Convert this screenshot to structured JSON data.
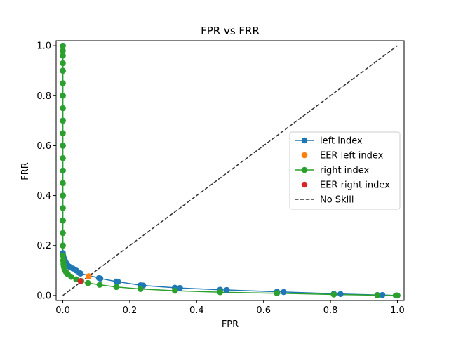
{
  "chart_data": {
    "type": "line",
    "title": "FPR vs FRR",
    "xlabel": "FPR",
    "ylabel": "FRR",
    "xlim": [
      -0.02,
      1.02
    ],
    "ylim": [
      -0.02,
      1.02
    ],
    "xticks": [
      0.0,
      0.2,
      0.4,
      0.6,
      0.8,
      1.0
    ],
    "yticks": [
      0.0,
      0.2,
      0.4,
      0.6,
      0.8,
      1.0
    ],
    "tick_labels_x": [
      "0.0",
      "0.2",
      "0.4",
      "0.6",
      "0.8",
      "1.0"
    ],
    "tick_labels_y": [
      "0.0",
      "0.2",
      "0.4",
      "0.6",
      "0.8",
      "1.0"
    ],
    "grid": false,
    "legend_position": "center-right",
    "series": [
      {
        "name": "left index",
        "kind": "line-marker",
        "color": "#1f77b4",
        "x": [
          1.0,
          0.997,
          0.955,
          0.94,
          0.83,
          0.81,
          0.66,
          0.64,
          0.49,
          0.47,
          0.35,
          0.335,
          0.24,
          0.232,
          0.165,
          0.16,
          0.112,
          0.108,
          0.053,
          0.05,
          0.04,
          0.03,
          0.02,
          0.014,
          0.01,
          0.006,
          0.003,
          0.001,
          0.0,
          0.0,
          0.0,
          0.0,
          0.0,
          0.0,
          0.0,
          0.0,
          0.0,
          0.0
        ],
        "y": [
          0.0,
          0.0,
          0.002,
          0.002,
          0.006,
          0.007,
          0.014,
          0.015,
          0.022,
          0.023,
          0.03,
          0.031,
          0.04,
          0.041,
          0.055,
          0.056,
          0.068,
          0.07,
          0.088,
          0.09,
          0.1,
          0.108,
          0.115,
          0.122,
          0.13,
          0.14,
          0.15,
          0.16,
          0.17,
          0.2,
          0.3,
          0.4,
          0.5,
          0.6,
          0.7,
          0.8,
          0.9,
          1.0
        ]
      },
      {
        "name": "EER left index",
        "kind": "marker",
        "color": "#ff7f0e",
        "x": [
          0.077
        ],
        "y": [
          0.077
        ]
      },
      {
        "name": "right index",
        "kind": "line-marker",
        "color": "#2ca02c",
        "x": [
          1.0,
          0.995,
          0.94,
          0.81,
          0.64,
          0.47,
          0.335,
          0.232,
          0.16,
          0.11,
          0.075,
          0.055,
          0.04,
          0.025,
          0.015,
          0.009,
          0.005,
          0.003,
          0.002,
          0.001,
          0.0,
          0.0,
          0.0,
          0.0,
          0.0,
          0.0,
          0.0,
          0.0,
          0.0,
          0.0,
          0.0,
          0.0,
          0.0,
          0.0,
          0.0,
          0.0,
          0.0,
          0.0,
          0.0,
          0.0
        ],
        "y": [
          0.0,
          0.0,
          0.001,
          0.004,
          0.009,
          0.013,
          0.019,
          0.026,
          0.034,
          0.043,
          0.05,
          0.058,
          0.065,
          0.075,
          0.085,
          0.095,
          0.105,
          0.115,
          0.125,
          0.14,
          0.16,
          0.2,
          0.25,
          0.3,
          0.35,
          0.4,
          0.45,
          0.5,
          0.55,
          0.6,
          0.65,
          0.7,
          0.75,
          0.8,
          0.85,
          0.9,
          0.93,
          0.96,
          0.98,
          1.0
        ]
      },
      {
        "name": "EER right index",
        "kind": "marker",
        "color": "#d62728",
        "x": [
          0.053
        ],
        "y": [
          0.058
        ]
      },
      {
        "name": "No Skill",
        "kind": "dashed-line",
        "color": "#333333",
        "x": [
          0.0,
          1.0
        ],
        "y": [
          0.0,
          1.0
        ]
      }
    ]
  }
}
